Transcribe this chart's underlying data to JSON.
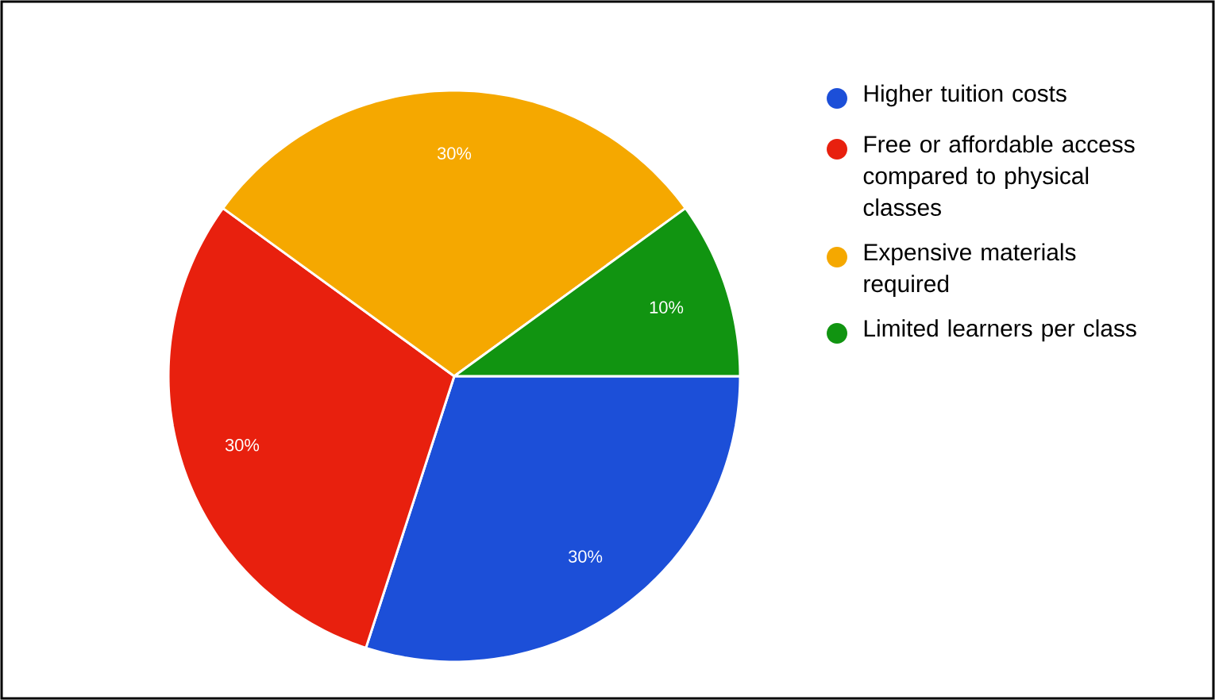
{
  "chart_data": {
    "type": "pie",
    "categories": [
      "Higher tuition costs",
      "Free or affordable access compared to physical classes",
      "Expensive materials required",
      "Limited learners per class"
    ],
    "values": [
      30,
      30,
      30,
      10
    ],
    "colors": [
      "#1c4fd8",
      "#e8200e",
      "#f5a800",
      "#119411"
    ],
    "value_labels": [
      "30%",
      "30%",
      "30%",
      "10%"
    ],
    "legend": "right"
  }
}
